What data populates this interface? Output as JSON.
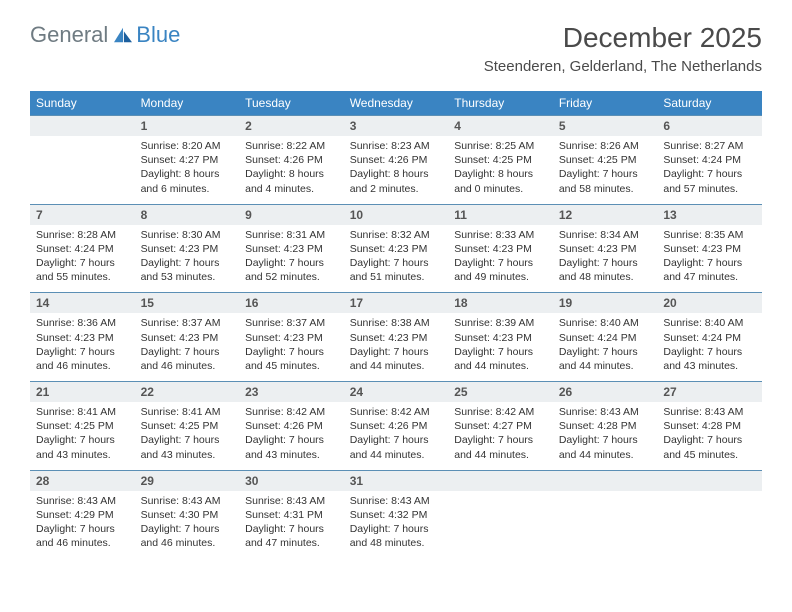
{
  "brand": {
    "part1": "General",
    "part2": "Blue"
  },
  "title": "December 2025",
  "location": "Steenderen, Gelderland, The Netherlands",
  "colors": {
    "header_bg": "#3a84c2",
    "daynum_bg": "#eceff1",
    "rule": "#5b8fb5",
    "text": "#333333",
    "logo_gray": "#6f7b82",
    "logo_blue": "#3a84c2"
  },
  "dayNames": [
    "Sunday",
    "Monday",
    "Tuesday",
    "Wednesday",
    "Thursday",
    "Friday",
    "Saturday"
  ],
  "weeks": [
    [
      {
        "n": "",
        "sr": "",
        "ss": "",
        "dl": ""
      },
      {
        "n": "1",
        "sr": "Sunrise: 8:20 AM",
        "ss": "Sunset: 4:27 PM",
        "dl": "Daylight: 8 hours and 6 minutes."
      },
      {
        "n": "2",
        "sr": "Sunrise: 8:22 AM",
        "ss": "Sunset: 4:26 PM",
        "dl": "Daylight: 8 hours and 4 minutes."
      },
      {
        "n": "3",
        "sr": "Sunrise: 8:23 AM",
        "ss": "Sunset: 4:26 PM",
        "dl": "Daylight: 8 hours and 2 minutes."
      },
      {
        "n": "4",
        "sr": "Sunrise: 8:25 AM",
        "ss": "Sunset: 4:25 PM",
        "dl": "Daylight: 8 hours and 0 minutes."
      },
      {
        "n": "5",
        "sr": "Sunrise: 8:26 AM",
        "ss": "Sunset: 4:25 PM",
        "dl": "Daylight: 7 hours and 58 minutes."
      },
      {
        "n": "6",
        "sr": "Sunrise: 8:27 AM",
        "ss": "Sunset: 4:24 PM",
        "dl": "Daylight: 7 hours and 57 minutes."
      }
    ],
    [
      {
        "n": "7",
        "sr": "Sunrise: 8:28 AM",
        "ss": "Sunset: 4:24 PM",
        "dl": "Daylight: 7 hours and 55 minutes."
      },
      {
        "n": "8",
        "sr": "Sunrise: 8:30 AM",
        "ss": "Sunset: 4:23 PM",
        "dl": "Daylight: 7 hours and 53 minutes."
      },
      {
        "n": "9",
        "sr": "Sunrise: 8:31 AM",
        "ss": "Sunset: 4:23 PM",
        "dl": "Daylight: 7 hours and 52 minutes."
      },
      {
        "n": "10",
        "sr": "Sunrise: 8:32 AM",
        "ss": "Sunset: 4:23 PM",
        "dl": "Daylight: 7 hours and 51 minutes."
      },
      {
        "n": "11",
        "sr": "Sunrise: 8:33 AM",
        "ss": "Sunset: 4:23 PM",
        "dl": "Daylight: 7 hours and 49 minutes."
      },
      {
        "n": "12",
        "sr": "Sunrise: 8:34 AM",
        "ss": "Sunset: 4:23 PM",
        "dl": "Daylight: 7 hours and 48 minutes."
      },
      {
        "n": "13",
        "sr": "Sunrise: 8:35 AM",
        "ss": "Sunset: 4:23 PM",
        "dl": "Daylight: 7 hours and 47 minutes."
      }
    ],
    [
      {
        "n": "14",
        "sr": "Sunrise: 8:36 AM",
        "ss": "Sunset: 4:23 PM",
        "dl": "Daylight: 7 hours and 46 minutes."
      },
      {
        "n": "15",
        "sr": "Sunrise: 8:37 AM",
        "ss": "Sunset: 4:23 PM",
        "dl": "Daylight: 7 hours and 46 minutes."
      },
      {
        "n": "16",
        "sr": "Sunrise: 8:37 AM",
        "ss": "Sunset: 4:23 PM",
        "dl": "Daylight: 7 hours and 45 minutes."
      },
      {
        "n": "17",
        "sr": "Sunrise: 8:38 AM",
        "ss": "Sunset: 4:23 PM",
        "dl": "Daylight: 7 hours and 44 minutes."
      },
      {
        "n": "18",
        "sr": "Sunrise: 8:39 AM",
        "ss": "Sunset: 4:23 PM",
        "dl": "Daylight: 7 hours and 44 minutes."
      },
      {
        "n": "19",
        "sr": "Sunrise: 8:40 AM",
        "ss": "Sunset: 4:24 PM",
        "dl": "Daylight: 7 hours and 44 minutes."
      },
      {
        "n": "20",
        "sr": "Sunrise: 8:40 AM",
        "ss": "Sunset: 4:24 PM",
        "dl": "Daylight: 7 hours and 43 minutes."
      }
    ],
    [
      {
        "n": "21",
        "sr": "Sunrise: 8:41 AM",
        "ss": "Sunset: 4:25 PM",
        "dl": "Daylight: 7 hours and 43 minutes."
      },
      {
        "n": "22",
        "sr": "Sunrise: 8:41 AM",
        "ss": "Sunset: 4:25 PM",
        "dl": "Daylight: 7 hours and 43 minutes."
      },
      {
        "n": "23",
        "sr": "Sunrise: 8:42 AM",
        "ss": "Sunset: 4:26 PM",
        "dl": "Daylight: 7 hours and 43 minutes."
      },
      {
        "n": "24",
        "sr": "Sunrise: 8:42 AM",
        "ss": "Sunset: 4:26 PM",
        "dl": "Daylight: 7 hours and 44 minutes."
      },
      {
        "n": "25",
        "sr": "Sunrise: 8:42 AM",
        "ss": "Sunset: 4:27 PM",
        "dl": "Daylight: 7 hours and 44 minutes."
      },
      {
        "n": "26",
        "sr": "Sunrise: 8:43 AM",
        "ss": "Sunset: 4:28 PM",
        "dl": "Daylight: 7 hours and 44 minutes."
      },
      {
        "n": "27",
        "sr": "Sunrise: 8:43 AM",
        "ss": "Sunset: 4:28 PM",
        "dl": "Daylight: 7 hours and 45 minutes."
      }
    ],
    [
      {
        "n": "28",
        "sr": "Sunrise: 8:43 AM",
        "ss": "Sunset: 4:29 PM",
        "dl": "Daylight: 7 hours and 46 minutes."
      },
      {
        "n": "29",
        "sr": "Sunrise: 8:43 AM",
        "ss": "Sunset: 4:30 PM",
        "dl": "Daylight: 7 hours and 46 minutes."
      },
      {
        "n": "30",
        "sr": "Sunrise: 8:43 AM",
        "ss": "Sunset: 4:31 PM",
        "dl": "Daylight: 7 hours and 47 minutes."
      },
      {
        "n": "31",
        "sr": "Sunrise: 8:43 AM",
        "ss": "Sunset: 4:32 PM",
        "dl": "Daylight: 7 hours and 48 minutes."
      },
      {
        "n": "",
        "sr": "",
        "ss": "",
        "dl": ""
      },
      {
        "n": "",
        "sr": "",
        "ss": "",
        "dl": ""
      },
      {
        "n": "",
        "sr": "",
        "ss": "",
        "dl": ""
      }
    ]
  ]
}
